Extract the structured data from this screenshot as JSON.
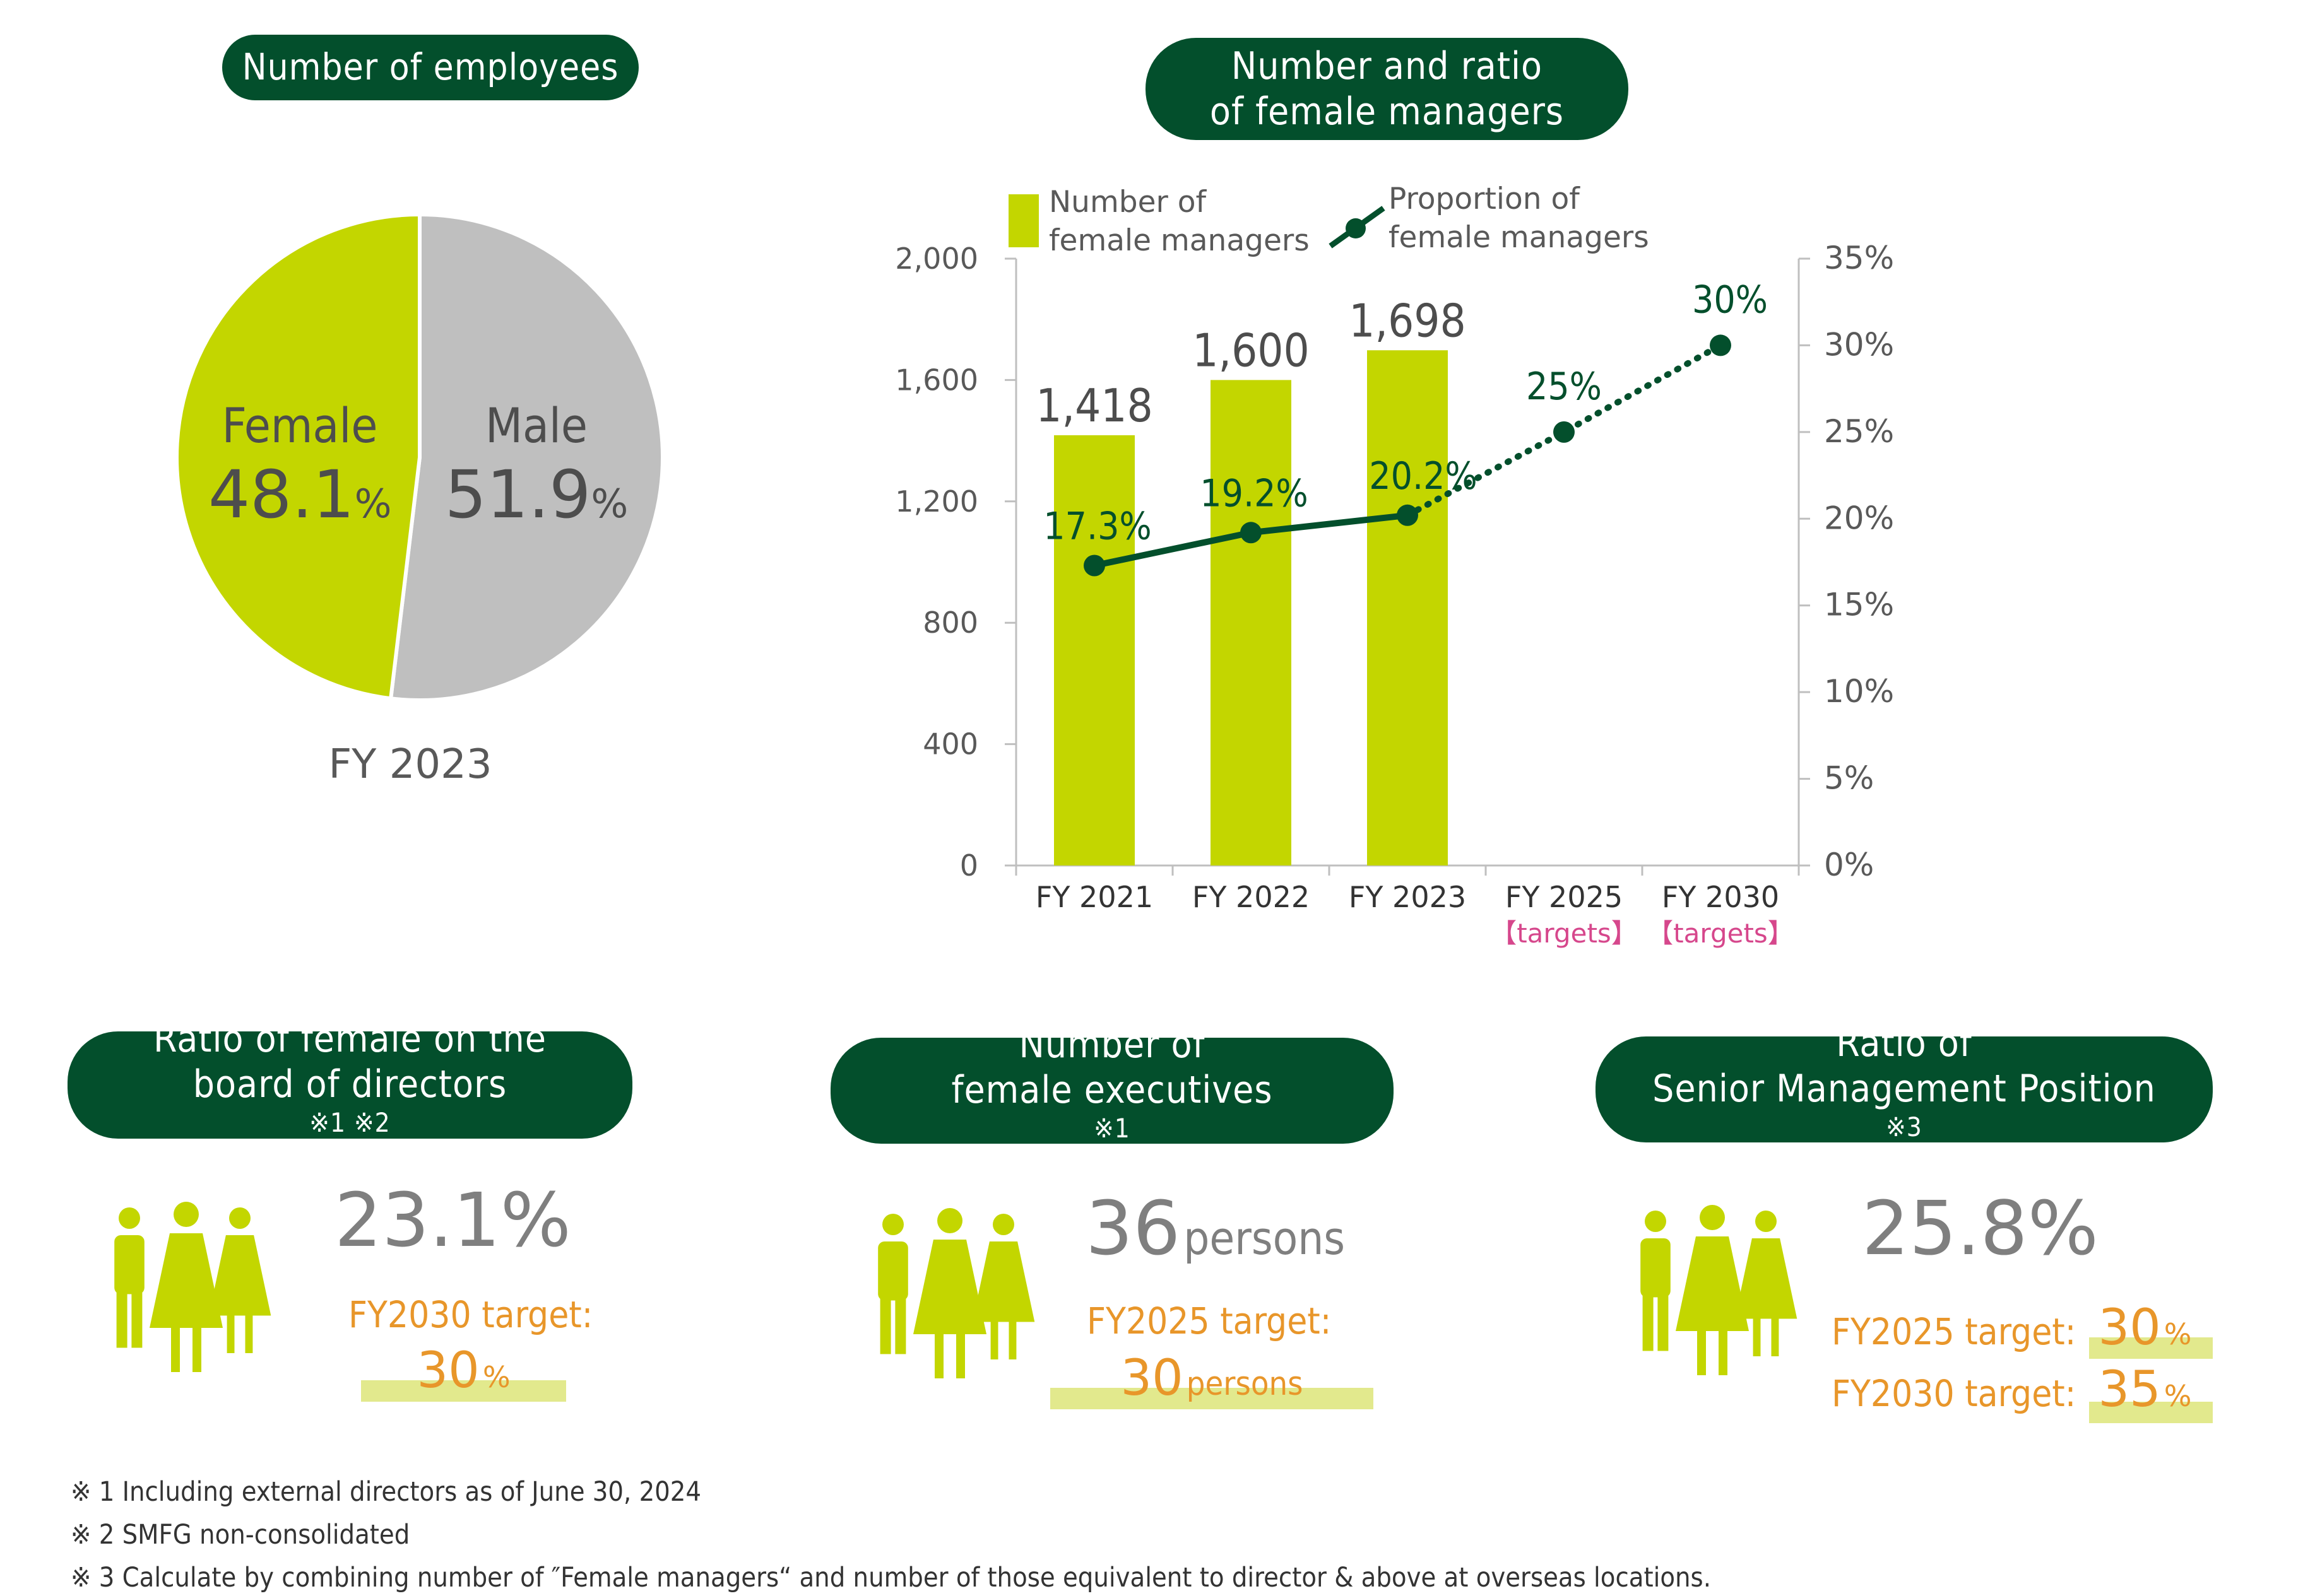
{
  "employees": {
    "title": "Number of employees",
    "caption": "FY 2023",
    "female": {
      "label": "Female",
      "value": "48.1",
      "unit": "%"
    },
    "male": {
      "label": "Male",
      "value": "51.9",
      "unit": "%"
    }
  },
  "managers": {
    "title_line1": "Number and ratio",
    "title_line2": "of female managers",
    "legend_bar_line1": "Number of",
    "legend_bar_line2": "female managers",
    "legend_line_line1": "Proportion of",
    "legend_line_line2": "female managers",
    "targets_label": "【targets】"
  },
  "board": {
    "title_line1": "Ratio of female on the",
    "title_line2": "board of directors",
    "title_marks": "※1 ※2",
    "value": "23.1%",
    "target_label": "FY2030 target:",
    "target_value": "30",
    "target_unit": "%"
  },
  "executives": {
    "title_line1": "Number of",
    "title_line2": "female executives",
    "title_marks": "※1",
    "value": "36",
    "unit": "persons",
    "target_label": "FY2025 target:",
    "target_value": "30",
    "target_unit": "persons"
  },
  "senior": {
    "title_line1": "Ratio of",
    "title_line2": "Senior Management Position",
    "title_marks": "※3",
    "value": "25.8%",
    "target1_label": "FY2025 target:",
    "target1_value": "30",
    "target1_unit": "%",
    "target2_label": "FY2030 target:",
    "target2_value": "35",
    "target2_unit": "%"
  },
  "notes": [
    "※ 1 Including external directors as of June 30, 2024",
    "※ 2 SMFG non-consolidated",
    "※ 3 Calculate by combining number of ″Female managers“ and number of those equivalent to director & above at overseas locations."
  ],
  "colors": {
    "dark_green": "#034f2c",
    "lime": "#c3d600",
    "gray": "#bfbfbf",
    "orange": "#e8962a",
    "pink": "#d6478c"
  },
  "icons": [
    "people-group-icon"
  ],
  "chart_data": [
    {
      "type": "pie",
      "categories": [
        "Female",
        "Male"
      ],
      "values": [
        48.1,
        51.9
      ]
    },
    {
      "type": "bar",
      "categories": [
        "FY 2021",
        "FY 2022",
        "FY 2023",
        "FY 2025",
        "FY 2030"
      ],
      "ylim": [
        0,
        2000
      ],
      "y_ticks": [
        "0",
        "400",
        "800",
        "1,200",
        "1,600",
        "2,000"
      ],
      "y2lim": [
        0,
        35
      ],
      "y2_ticks": [
        "0%",
        "5%",
        "10%",
        "15%",
        "20%",
        "25%",
        "30%",
        "35%"
      ],
      "series": [
        {
          "name": "Number of female managers",
          "type": "bar",
          "values": [
            1418,
            1600,
            1698,
            null,
            null
          ],
          "labels": [
            "1,418",
            "1,600",
            "1,698",
            "",
            ""
          ]
        },
        {
          "name": "Proportion of female managers",
          "type": "line",
          "axis": "right",
          "values": [
            17.3,
            19.2,
            20.2,
            25,
            30
          ],
          "labels": [
            "17.3%",
            "19.2%",
            "20.2%",
            "25%",
            "30%"
          ],
          "dotted_from_index": 2
        }
      ],
      "grid": false,
      "legend": "top"
    }
  ]
}
